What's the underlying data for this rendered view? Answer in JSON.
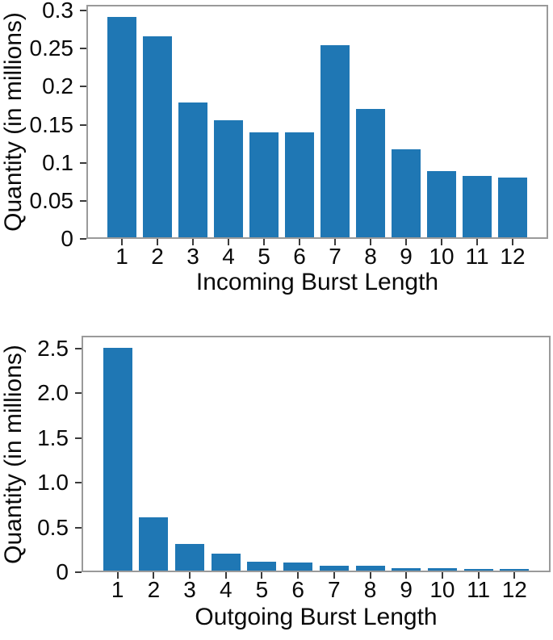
{
  "figure": {
    "background": "#ffffff",
    "bar_color": "#1f77b4",
    "spine_color": "#9a9a9a",
    "tick_color": "#3a3a3a",
    "text_color": "#0a0a0a"
  },
  "chart_data": [
    {
      "id": "incoming-burst-length",
      "type": "bar",
      "title": "",
      "xlabel": "Incoming Burst Length",
      "ylabel": "Quantity (in millions)",
      "categories": [
        "1",
        "2",
        "3",
        "4",
        "5",
        "6",
        "7",
        "8",
        "9",
        "10",
        "11",
        "12"
      ],
      "values": [
        0.291,
        0.266,
        0.178,
        0.155,
        0.139,
        0.139,
        0.254,
        0.17,
        0.116,
        0.088,
        0.081,
        0.079
      ],
      "ylim": [
        0,
        0.3075
      ],
      "yticks": [
        {
          "label": "0",
          "value": 0
        },
        {
          "label": "0.05",
          "value": 0.05
        },
        {
          "label": "0.1",
          "value": 0.1
        },
        {
          "label": "0.15",
          "value": 0.15
        },
        {
          "label": "0.2",
          "value": 0.2
        },
        {
          "label": "0.25",
          "value": 0.25
        },
        {
          "label": "0.3",
          "value": 0.3
        }
      ],
      "grid": false,
      "legend": null
    },
    {
      "id": "outgoing-burst-length",
      "type": "bar",
      "title": "",
      "xlabel": "Outgoing Burst Length",
      "ylabel": "Quantity (in millions)",
      "categories": [
        "1",
        "2",
        "3",
        "4",
        "5",
        "6",
        "7",
        "8",
        "9",
        "10",
        "11",
        "12"
      ],
      "values": [
        2.5,
        0.6,
        0.3,
        0.19,
        0.1,
        0.09,
        0.05,
        0.05,
        0.03,
        0.03,
        0.02,
        0.02
      ],
      "ylim": [
        0,
        2.64
      ],
      "yticks": [
        {
          "label": "0",
          "value": 0
        },
        {
          "label": "0.5",
          "value": 0.5
        },
        {
          "label": "1.0",
          "value": 1.0
        },
        {
          "label": "1.5",
          "value": 1.5
        },
        {
          "label": "2.0",
          "value": 2.0
        },
        {
          "label": "2.5",
          "value": 2.5
        }
      ],
      "grid": false,
      "legend": null
    }
  ]
}
